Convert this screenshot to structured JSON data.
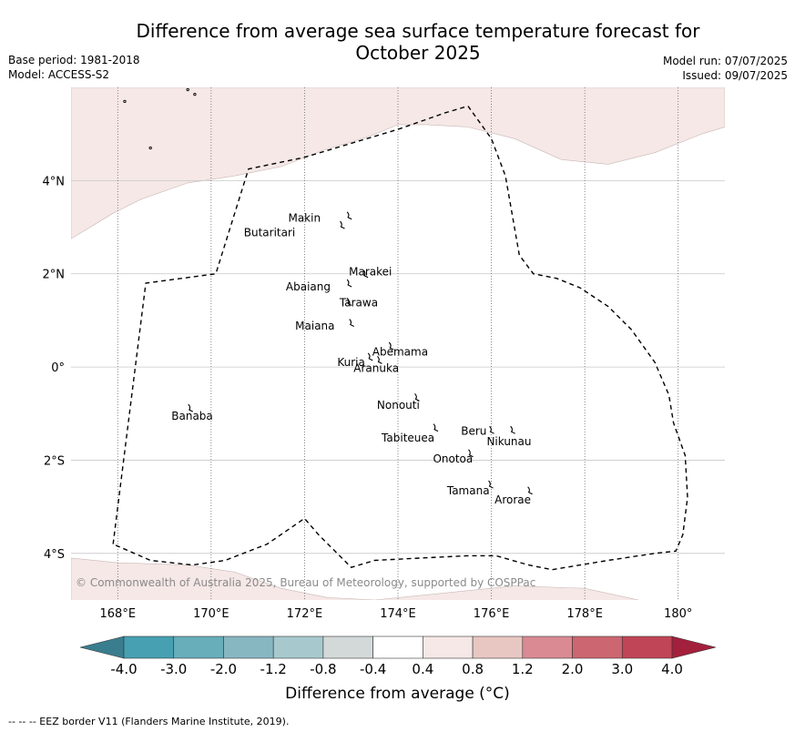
{
  "header": {
    "title": "Difference from average sea surface temperature forecast for\nOctober 2025",
    "base_period": "Base period: 1981-2018",
    "model": "Model: ACCESS-S2",
    "model_run": "Model run: 07/07/2025",
    "issued": "Issued: 09/07/2025"
  },
  "map": {
    "lon_range": [
      167,
      181
    ],
    "lat_range": [
      -5,
      6
    ],
    "x_ticks": [
      {
        "lon": 168,
        "label": "168°E"
      },
      {
        "lon": 170,
        "label": "170°E"
      },
      {
        "lon": 172,
        "label": "172°E"
      },
      {
        "lon": 174,
        "label": "174°E"
      },
      {
        "lon": 176,
        "label": "176°E"
      },
      {
        "lon": 178,
        "label": "178°E"
      },
      {
        "lon": 180,
        "label": "180°"
      }
    ],
    "y_ticks": [
      {
        "lat": 4,
        "label": "4°N"
      },
      {
        "lat": 2,
        "label": "2°N"
      },
      {
        "lat": 0,
        "label": "0°"
      },
      {
        "lat": -2,
        "label": "2°S"
      },
      {
        "lat": -4,
        "label": "4°S"
      }
    ],
    "anomaly_fill_color": "#f5e8e6",
    "eez_border": [
      [
        167.9,
        -3.8
      ],
      [
        168.6,
        1.8
      ],
      [
        170.1,
        2.0
      ],
      [
        170.8,
        4.25
      ],
      [
        172.0,
        4.5
      ],
      [
        173.0,
        4.8
      ],
      [
        174.0,
        5.1
      ],
      [
        175.0,
        5.45
      ],
      [
        175.5,
        5.6
      ],
      [
        176.0,
        4.9
      ],
      [
        176.3,
        4.1
      ],
      [
        176.6,
        2.4
      ],
      [
        176.9,
        2.0
      ],
      [
        177.4,
        1.9
      ],
      [
        177.9,
        1.7
      ],
      [
        178.5,
        1.3
      ],
      [
        179.0,
        0.8
      ],
      [
        179.5,
        0.1
      ],
      [
        179.8,
        -0.6
      ],
      [
        179.9,
        -1.2
      ],
      [
        180.15,
        -1.9
      ],
      [
        180.2,
        -2.8
      ],
      [
        180.1,
        -3.6
      ],
      [
        179.95,
        -3.95
      ],
      [
        179.5,
        -4.0
      ],
      [
        178.5,
        -4.15
      ],
      [
        177.3,
        -4.35
      ],
      [
        176.8,
        -4.25
      ],
      [
        176.1,
        -4.05
      ],
      [
        175.5,
        -4.05
      ],
      [
        174.5,
        -4.1
      ],
      [
        173.5,
        -4.15
      ],
      [
        173.0,
        -4.3
      ],
      [
        172.3,
        -3.6
      ],
      [
        172.0,
        -3.25
      ],
      [
        171.2,
        -3.8
      ],
      [
        170.3,
        -4.15
      ],
      [
        169.6,
        -4.25
      ],
      [
        168.7,
        -4.15
      ],
      [
        167.9,
        -3.8
      ]
    ],
    "north_anomaly": [
      [
        167,
        2.75
      ],
      [
        167.9,
        3.3
      ],
      [
        168.5,
        3.6
      ],
      [
        169.5,
        3.95
      ],
      [
        170.5,
        4.1
      ],
      [
        171.5,
        4.3
      ],
      [
        172.4,
        4.65
      ],
      [
        173.4,
        4.95
      ],
      [
        174.0,
        5.2
      ],
      [
        174.6,
        5.2
      ],
      [
        175.5,
        5.15
      ],
      [
        176.5,
        4.9
      ],
      [
        177.5,
        4.45
      ],
      [
        178.5,
        4.35
      ],
      [
        179.5,
        4.6
      ],
      [
        180.5,
        5.0
      ],
      [
        181,
        5.15
      ],
      [
        181,
        6
      ],
      [
        167,
        6
      ]
    ],
    "south_anomaly": [
      [
        167,
        -4.1
      ],
      [
        168,
        -4.2
      ],
      [
        169.5,
        -4.25
      ],
      [
        170.5,
        -4.4
      ],
      [
        171.5,
        -4.75
      ],
      [
        172.5,
        -4.95
      ],
      [
        173.5,
        -5.0
      ],
      [
        175,
        -4.85
      ],
      [
        176.5,
        -4.7
      ],
      [
        178,
        -4.75
      ],
      [
        179.6,
        -5.1
      ],
      [
        167,
        -5.1
      ]
    ],
    "islands": [
      {
        "name": "Makin",
        "lon": 172.95,
        "lat": 3.25,
        "label_lon": 171.65,
        "label_lat": 3.2
      },
      {
        "name": "Butaritari",
        "lon": 172.8,
        "lat": 3.05,
        "label_lon": 170.7,
        "label_lat": 2.88
      },
      {
        "name": "Marakei",
        "lon": 173.3,
        "lat": 2.0,
        "label_lon": 172.95,
        "label_lat": 2.04
      },
      {
        "name": "Abaiang",
        "lon": 172.95,
        "lat": 1.8,
        "label_lon": 171.6,
        "label_lat": 1.72
      },
      {
        "name": "Tarawa",
        "lon": 172.95,
        "lat": 1.4,
        "label_lon": 172.75,
        "label_lat": 1.38
      },
      {
        "name": "Maiana",
        "lon": 173.0,
        "lat": 0.95,
        "label_lon": 171.8,
        "label_lat": 0.88
      },
      {
        "name": "Abemama",
        "lon": 173.85,
        "lat": 0.45,
        "label_lon": 173.45,
        "label_lat": 0.32
      },
      {
        "name": "Kuria",
        "lon": 173.4,
        "lat": 0.22,
        "label_lon": 172.7,
        "label_lat": 0.1
      },
      {
        "name": "Aranuka",
        "lon": 173.6,
        "lat": 0.15,
        "label_lon": 173.05,
        "label_lat": -0.03
      },
      {
        "name": "Nonouti",
        "lon": 174.4,
        "lat": -0.65,
        "label_lon": 173.55,
        "label_lat": -0.82
      },
      {
        "name": "Tabiteuea",
        "lon": 174.8,
        "lat": -1.3,
        "label_lon": 173.65,
        "label_lat": -1.52
      },
      {
        "name": "Beru",
        "lon": 176.0,
        "lat": -1.35,
        "label_lon": 175.35,
        "label_lat": -1.38
      },
      {
        "name": "Nikunau",
        "lon": 176.45,
        "lat": -1.35,
        "label_lon": 175.9,
        "label_lat": -1.6
      },
      {
        "name": "Onotoa",
        "lon": 175.55,
        "lat": -1.85,
        "label_lon": 174.75,
        "label_lat": -1.97
      },
      {
        "name": "Tamana",
        "lon": 175.98,
        "lat": -2.52,
        "label_lon": 175.05,
        "label_lat": -2.66
      },
      {
        "name": "Arorae",
        "lon": 176.82,
        "lat": -2.65,
        "label_lon": 176.07,
        "label_lat": -2.85
      },
      {
        "name": "Banaba",
        "lon": 169.55,
        "lat": -0.88,
        "label_lon": 169.15,
        "label_lat": -1.05
      }
    ],
    "attribution": "© Commonwealth of Australia 2025, Bureau of Meteorology, supported by COSPPac"
  },
  "colorbar": {
    "label": "Difference from average (°C)",
    "ticks": [
      "-4.0",
      "-3.0",
      "-2.0",
      "-1.2",
      "-0.8",
      "-0.4",
      "0.4",
      "0.8",
      "1.2",
      "2.0",
      "3.0",
      "4.0"
    ],
    "under_color": "#3a7d8e",
    "over_color": "#a3203c",
    "colors": [
      "#46a0b2",
      "#67adba",
      "#87b7c1",
      "#a7c9cd",
      "#d3d8d8",
      "#ffffff",
      "#f5e8e6",
      "#e8c7c3",
      "#d98a92",
      "#cc6670",
      "#c04556"
    ]
  },
  "footer": {
    "legend": "--  --  -- EEZ border V11 (Flanders Marine Institute, 2019)."
  }
}
